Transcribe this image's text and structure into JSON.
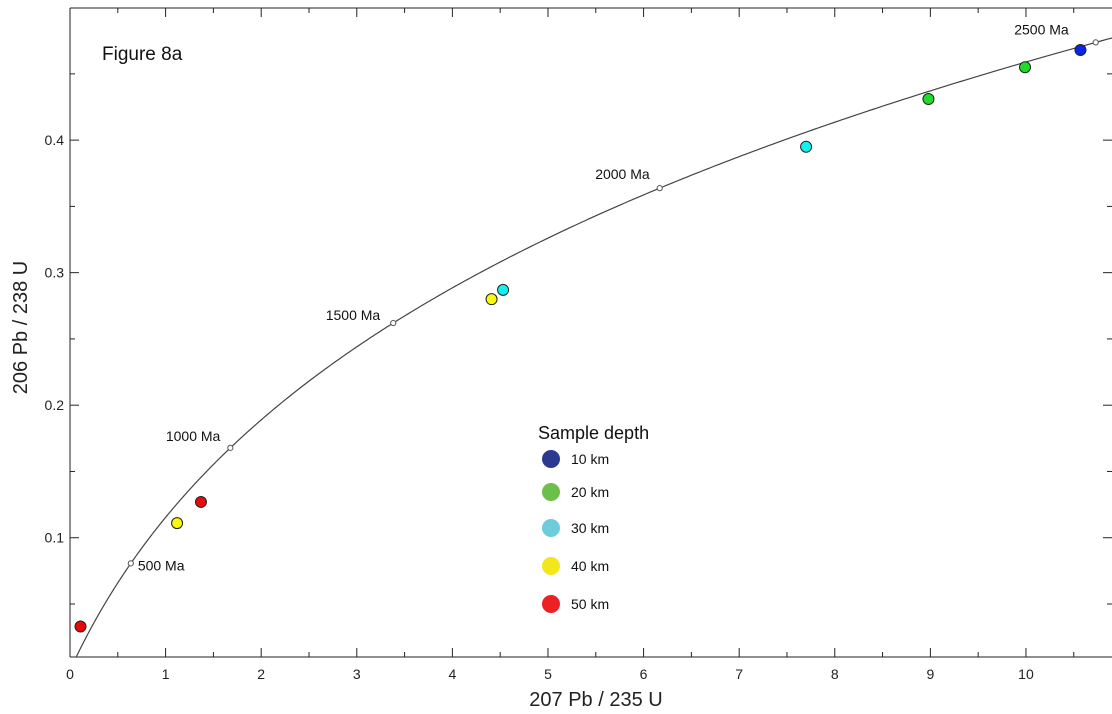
{
  "chart_data": {
    "type": "scatter",
    "title": "Figure 8a",
    "xlabel": "207 Pb / 235 U",
    "ylabel": "206 Pb / 238 U",
    "xlim": [
      0,
      10.9
    ],
    "ylim": [
      0.01,
      0.4997
    ],
    "x_ticks": [
      0,
      1,
      2,
      3,
      4,
      5,
      6,
      7,
      8,
      9,
      10
    ],
    "x_minor_ticks": [
      0.5,
      1.5,
      2.5,
      3.5,
      4.5,
      5.5,
      6.5,
      7.5,
      8.5,
      9.5,
      10.5
    ],
    "y_ticks": [
      0.1,
      0.2,
      0.3,
      0.4
    ],
    "y_minor_ticks": [
      0.05,
      0.15,
      0.25,
      0.35,
      0.45
    ],
    "grid": false,
    "legend": {
      "title": "Sample depth",
      "position": "center",
      "entries": [
        {
          "label": "10 km",
          "color": "#2b3990"
        },
        {
          "label": "20 km",
          "color": "#6cbf4b"
        },
        {
          "label": "30 km",
          "color": "#6dcbdc"
        },
        {
          "label": "40 km",
          "color": "#f4e61c"
        },
        {
          "label": "50 km",
          "color": "#ed2024"
        }
      ]
    },
    "series": [
      {
        "name": "10 km",
        "color": "#0a24e8",
        "x": [
          10.57
        ],
        "y": [
          0.468
        ]
      },
      {
        "name": "20 km",
        "color": "#1edc28",
        "x": [
          8.98,
          9.99
        ],
        "y": [
          0.431,
          0.455
        ]
      },
      {
        "name": "30 km",
        "color": "#14f0f0",
        "x": [
          4.53,
          7.7
        ],
        "y": [
          0.287,
          0.395
        ]
      },
      {
        "name": "40 km",
        "color": "#fafa0a",
        "x": [
          1.12,
          4.41
        ],
        "y": [
          0.111,
          0.28
        ]
      },
      {
        "name": "50 km",
        "color": "#e60a0a",
        "x": [
          0.11,
          1.37
        ],
        "y": [
          0.033,
          0.127
        ]
      }
    ],
    "concordia": {
      "age_labels": [
        {
          "label": "500 Ma",
          "age_ma": 500
        },
        {
          "label": "1000 Ma",
          "age_ma": 1000
        },
        {
          "label": "1500 Ma",
          "age_ma": 1500
        },
        {
          "label": "2000 Ma",
          "age_ma": 2000
        },
        {
          "label": "2500 Ma",
          "age_ma": 2500
        }
      ],
      "marker_ages_ma": [
        500,
        1000,
        1500,
        2000,
        2500
      ]
    }
  }
}
